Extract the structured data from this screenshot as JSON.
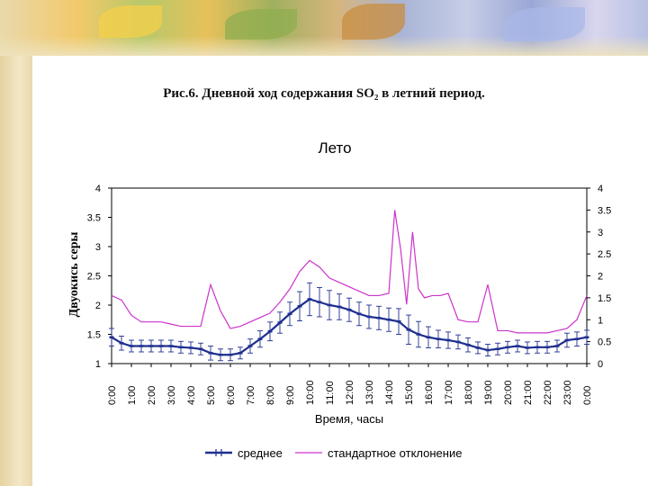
{
  "slide": {
    "title": "Рис.6. Дневной ход содержания SO₂ в летний период."
  },
  "chart_data": {
    "type": "line",
    "title": "Лето",
    "xlabel": "Время, часы",
    "ylabel": "Двуокись серы",
    "x_ticks": [
      "0:00",
      "1:00",
      "2:00",
      "3:00",
      "4:00",
      "5:00",
      "6:00",
      "7:00",
      "8:00",
      "9:00",
      "10:00",
      "11:00",
      "12:00",
      "13:00",
      "14:00",
      "15:00",
      "16:00",
      "17:00",
      "18:00",
      "19:00",
      "20:00",
      "21:00",
      "22:00",
      "23:00",
      "0:00"
    ],
    "ylim": [
      1,
      4
    ],
    "y_ticks": [
      "1",
      "1.5",
      "2",
      "2.5",
      "3",
      "3.5",
      "4"
    ],
    "y2lim": [
      0,
      4
    ],
    "y2_ticks": [
      "0",
      "0.5",
      "1",
      "1.5",
      "2",
      "2.5",
      "3",
      "3.5",
      "4"
    ],
    "x_range": [
      0,
      24
    ],
    "legend_position": "bottom",
    "series": [
      {
        "name": "среднее",
        "axis": "left",
        "color": "#1f2f8f",
        "x": [
          0,
          0.5,
          1,
          1.5,
          2,
          2.5,
          3,
          3.5,
          4,
          4.5,
          5,
          5.5,
          6,
          6.5,
          7,
          7.5,
          8,
          8.5,
          9,
          9.5,
          10,
          10.5,
          11,
          11.5,
          12,
          12.5,
          13,
          13.5,
          14,
          14.5,
          15,
          15.5,
          16,
          16.5,
          17,
          17.5,
          18,
          18.5,
          19,
          19.5,
          20,
          20.5,
          21,
          21.5,
          22,
          22.5,
          23,
          23.5,
          24
        ],
        "values": [
          1.45,
          1.35,
          1.3,
          1.3,
          1.3,
          1.3,
          1.3,
          1.28,
          1.27,
          1.25,
          1.18,
          1.15,
          1.15,
          1.18,
          1.3,
          1.42,
          1.55,
          1.7,
          1.85,
          1.98,
          2.1,
          2.05,
          2.0,
          1.97,
          1.92,
          1.85,
          1.8,
          1.78,
          1.75,
          1.72,
          1.58,
          1.5,
          1.45,
          1.42,
          1.4,
          1.37,
          1.32,
          1.27,
          1.23,
          1.25,
          1.28,
          1.3,
          1.27,
          1.28,
          1.28,
          1.3,
          1.4,
          1.42,
          1.45
        ],
        "error": [
          0.15,
          0.12,
          0.1,
          0.1,
          0.1,
          0.1,
          0.1,
          0.1,
          0.1,
          0.1,
          0.12,
          0.1,
          0.1,
          0.1,
          0.12,
          0.14,
          0.16,
          0.18,
          0.2,
          0.25,
          0.28,
          0.25,
          0.25,
          0.22,
          0.2,
          0.2,
          0.2,
          0.2,
          0.2,
          0.22,
          0.25,
          0.22,
          0.18,
          0.15,
          0.14,
          0.12,
          0.12,
          0.1,
          0.1,
          0.1,
          0.1,
          0.1,
          0.1,
          0.1,
          0.1,
          0.1,
          0.12,
          0.12,
          0.12
        ]
      },
      {
        "name": "стандартное отклонение",
        "axis": "right",
        "color": "#cc33cc",
        "x": [
          0,
          0.5,
          1,
          1.5,
          2,
          2.5,
          3,
          3.5,
          4,
          4.5,
          5,
          5.5,
          6,
          6.5,
          7,
          7.5,
          8,
          8.5,
          9,
          9.5,
          10,
          10.5,
          11,
          11.5,
          12,
          12.5,
          13,
          13.5,
          14,
          14.3,
          14.6,
          14.9,
          15.2,
          15.5,
          15.8,
          16.2,
          16.6,
          17,
          17.5,
          18,
          18.5,
          19,
          19.5,
          20,
          20.5,
          21,
          21.5,
          22,
          22.5,
          23,
          23.5,
          24
        ],
        "values": [
          1.55,
          1.45,
          1.1,
          0.95,
          0.95,
          0.95,
          0.9,
          0.85,
          0.85,
          0.85,
          1.8,
          1.2,
          0.8,
          0.85,
          0.95,
          1.05,
          1.15,
          1.4,
          1.7,
          2.1,
          2.35,
          2.2,
          1.95,
          1.85,
          1.75,
          1.65,
          1.55,
          1.55,
          1.6,
          3.5,
          2.6,
          1.35,
          3.0,
          1.7,
          1.5,
          1.55,
          1.55,
          1.6,
          1.0,
          0.95,
          0.95,
          1.8,
          0.75,
          0.75,
          0.7,
          0.7,
          0.7,
          0.7,
          0.75,
          0.8,
          1.0,
          1.55
        ]
      }
    ]
  }
}
